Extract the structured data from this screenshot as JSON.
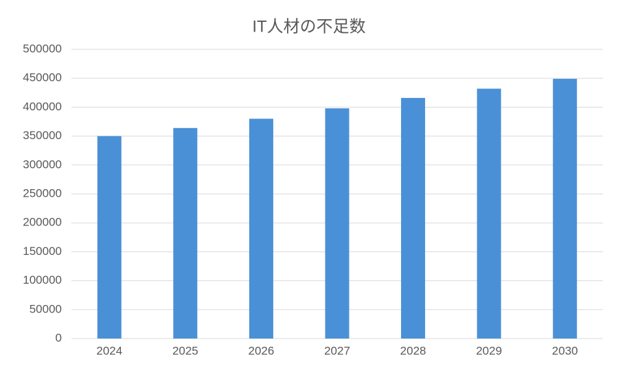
{
  "chart_data": {
    "type": "bar",
    "title": "IT人材の不足数",
    "categories": [
      "2024",
      "2025",
      "2026",
      "2027",
      "2028",
      "2029",
      "2030"
    ],
    "values": [
      350000,
      364000,
      380000,
      398000,
      416000,
      432000,
      449000
    ],
    "color": "#4a90d6",
    "ylim": [
      0,
      500000
    ],
    "yticks": [
      0,
      50000,
      100000,
      150000,
      200000,
      250000,
      300000,
      350000,
      400000,
      450000,
      500000
    ],
    "grid": true
  }
}
